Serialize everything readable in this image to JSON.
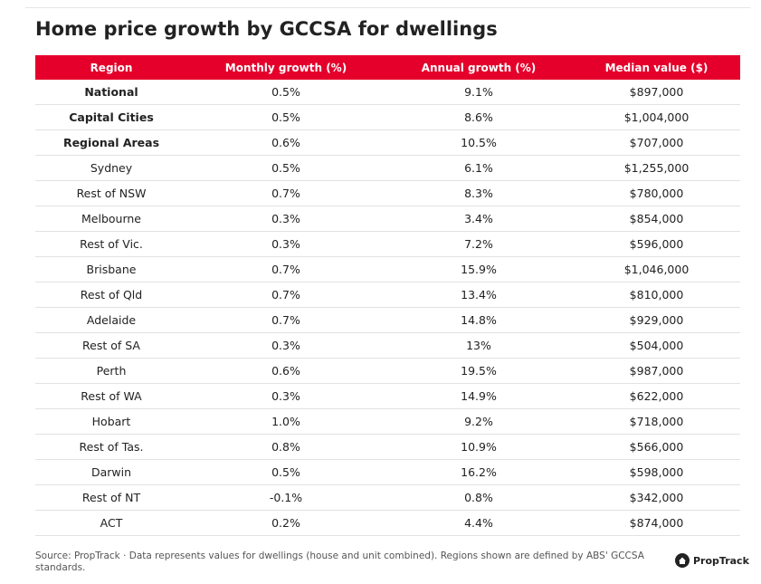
{
  "header": {
    "title": "Home price growth by GCCSA for dwellings"
  },
  "table": {
    "columns": [
      "Region",
      "Monthly growth (%)",
      "Annual growth (%)",
      "Median value ($)"
    ],
    "rows": [
      [
        "National",
        "0.5%",
        "9.1%",
        "$897,000"
      ],
      [
        "Capital Cities",
        "0.5%",
        "8.6%",
        "$1,004,000"
      ],
      [
        "Regional Areas",
        "0.6%",
        "10.5%",
        "$707,000"
      ],
      [
        "Sydney",
        "0.5%",
        "6.1%",
        "$1,255,000"
      ],
      [
        "Rest of NSW",
        "0.7%",
        "8.3%",
        "$780,000"
      ],
      [
        "Melbourne",
        "0.3%",
        "3.4%",
        "$854,000"
      ],
      [
        "Rest of Vic.",
        "0.3%",
        "7.2%",
        "$596,000"
      ],
      [
        "Brisbane",
        "0.7%",
        "15.9%",
        "$1,046,000"
      ],
      [
        "Rest of Qld",
        "0.7%",
        "13.4%",
        "$810,000"
      ],
      [
        "Adelaide",
        "0.7%",
        "14.8%",
        "$929,000"
      ],
      [
        "Rest of SA",
        "0.3%",
        "13%",
        "$504,000"
      ],
      [
        "Perth",
        "0.6%",
        "19.5%",
        "$987,000"
      ],
      [
        "Rest of WA",
        "0.3%",
        "14.9%",
        "$622,000"
      ],
      [
        "Hobart",
        "1.0%",
        "9.2%",
        "$718,000"
      ],
      [
        "Rest of Tas.",
        "0.8%",
        "10.9%",
        "$566,000"
      ],
      [
        "Darwin",
        "0.5%",
        "16.2%",
        "$598,000"
      ],
      [
        "Rest of NT",
        "-0.1%",
        "0.8%",
        "$342,000"
      ],
      [
        "ACT",
        "0.2%",
        "4.4%",
        "$874,000"
      ]
    ]
  },
  "footer": {
    "source": "Source: PropTrack · Data represents values for dwellings (house and unit combined). Regions shown are defined by ABS' GCCSA standards.",
    "logo": "PropTrack"
  }
}
